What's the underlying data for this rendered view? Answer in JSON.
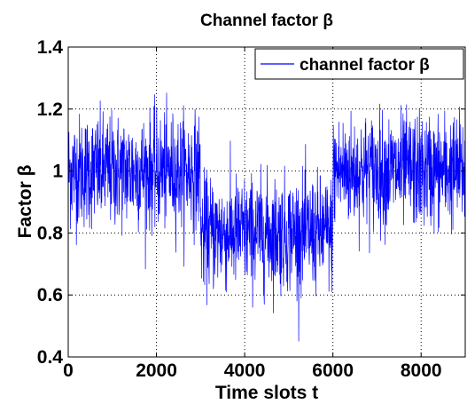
{
  "chart_data": {
    "type": "line",
    "title": "Channel factor β",
    "xlabel": "Time slots t",
    "ylabel": "Factor β",
    "xlim": [
      0,
      9000
    ],
    "ylim": [
      0.4,
      1.4
    ],
    "xticks": [
      0,
      2000,
      4000,
      6000,
      8000
    ],
    "xtick_labels": [
      "0",
      "2000",
      "4000",
      "6000",
      "8000"
    ],
    "yticks": [
      0.4,
      0.6,
      0.8,
      1.0,
      1.2,
      1.4
    ],
    "ytick_labels": [
      "0.4",
      "0.6",
      "0.8",
      "1",
      "1.2",
      "1.4"
    ],
    "grid": true,
    "legend_position": "top-right",
    "series": [
      {
        "name": "channel factor β",
        "color": "#0000ff",
        "segments": [
          {
            "x_start": 0,
            "x_end": 3000,
            "mean": 1.0,
            "typical_min": 0.8,
            "typical_max": 1.2,
            "min": 0.67,
            "max": 1.32
          },
          {
            "x_start": 3000,
            "x_end": 6000,
            "mean": 0.8,
            "typical_min": 0.6,
            "typical_max": 1.0,
            "min": 0.45,
            "max": 1.1
          },
          {
            "x_start": 6000,
            "x_end": 9000,
            "mean": 1.0,
            "typical_min": 0.8,
            "typical_max": 1.2,
            "min": 0.7,
            "max": 1.33
          }
        ]
      }
    ]
  }
}
